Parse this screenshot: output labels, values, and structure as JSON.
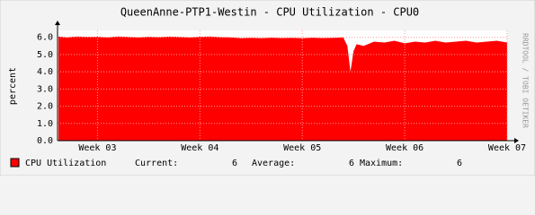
{
  "chart_data": {
    "type": "area",
    "title": "QueenAnne-PTP1-Westin - CPU Utilization - CPU0",
    "ylabel": "percent",
    "side_text": "RRDTOOL / TOBI OETIKER",
    "x": [
      2.62,
      2.7,
      2.8,
      2.9,
      3.0,
      3.1,
      3.2,
      3.3,
      3.4,
      3.5,
      3.6,
      3.7,
      3.8,
      3.9,
      4.0,
      4.1,
      4.2,
      4.3,
      4.4,
      4.5,
      4.6,
      4.7,
      4.8,
      4.9,
      5.0,
      5.1,
      5.2,
      5.3,
      5.4,
      5.44,
      5.47,
      5.5,
      5.53,
      5.6,
      5.7,
      5.8,
      5.9,
      6.0,
      6.1,
      6.2,
      6.3,
      6.4,
      6.5,
      6.6,
      6.7,
      6.8,
      6.9,
      7.0
    ],
    "series": [
      {
        "name": "CPU Utilization",
        "color": "#ff0000",
        "values": [
          6.05,
          6.0,
          6.05,
          6.02,
          6.03,
          6.0,
          6.05,
          6.02,
          6.0,
          6.03,
          6.01,
          6.04,
          6.02,
          6.0,
          6.03,
          6.05,
          6.01,
          6.0,
          5.95,
          5.97,
          5.95,
          5.98,
          5.96,
          5.97,
          5.95,
          5.98,
          5.96,
          5.97,
          6.0,
          5.5,
          4.0,
          5.2,
          5.6,
          5.5,
          5.75,
          5.7,
          5.8,
          5.65,
          5.75,
          5.7,
          5.8,
          5.7,
          5.75,
          5.8,
          5.7,
          5.75,
          5.8,
          5.7
        ]
      }
    ],
    "xlim": [
      2.61,
      7.0
    ],
    "xticks": [
      {
        "value": 3,
        "label": "Week 03"
      },
      {
        "value": 4,
        "label": "Week 04"
      },
      {
        "value": 5,
        "label": "Week 05"
      },
      {
        "value": 6,
        "label": "Week 06"
      },
      {
        "value": 7,
        "label": "Week 07"
      }
    ],
    "ylim": [
      0,
      6.4
    ],
    "yticks": [
      {
        "value": 0,
        "label": "0.0"
      },
      {
        "value": 1,
        "label": "1.0"
      },
      {
        "value": 2,
        "label": "2.0"
      },
      {
        "value": 3,
        "label": "3.0"
      },
      {
        "value": 4,
        "label": "4.0"
      },
      {
        "value": 5,
        "label": "5.0"
      },
      {
        "value": 6,
        "label": "6.0"
      }
    ],
    "grid": true,
    "legend_stats": [
      {
        "label": "Current:",
        "value": 6
      },
      {
        "label": "Average:",
        "value": 6
      },
      {
        "label": "Maximum:",
        "value": 6
      }
    ]
  }
}
